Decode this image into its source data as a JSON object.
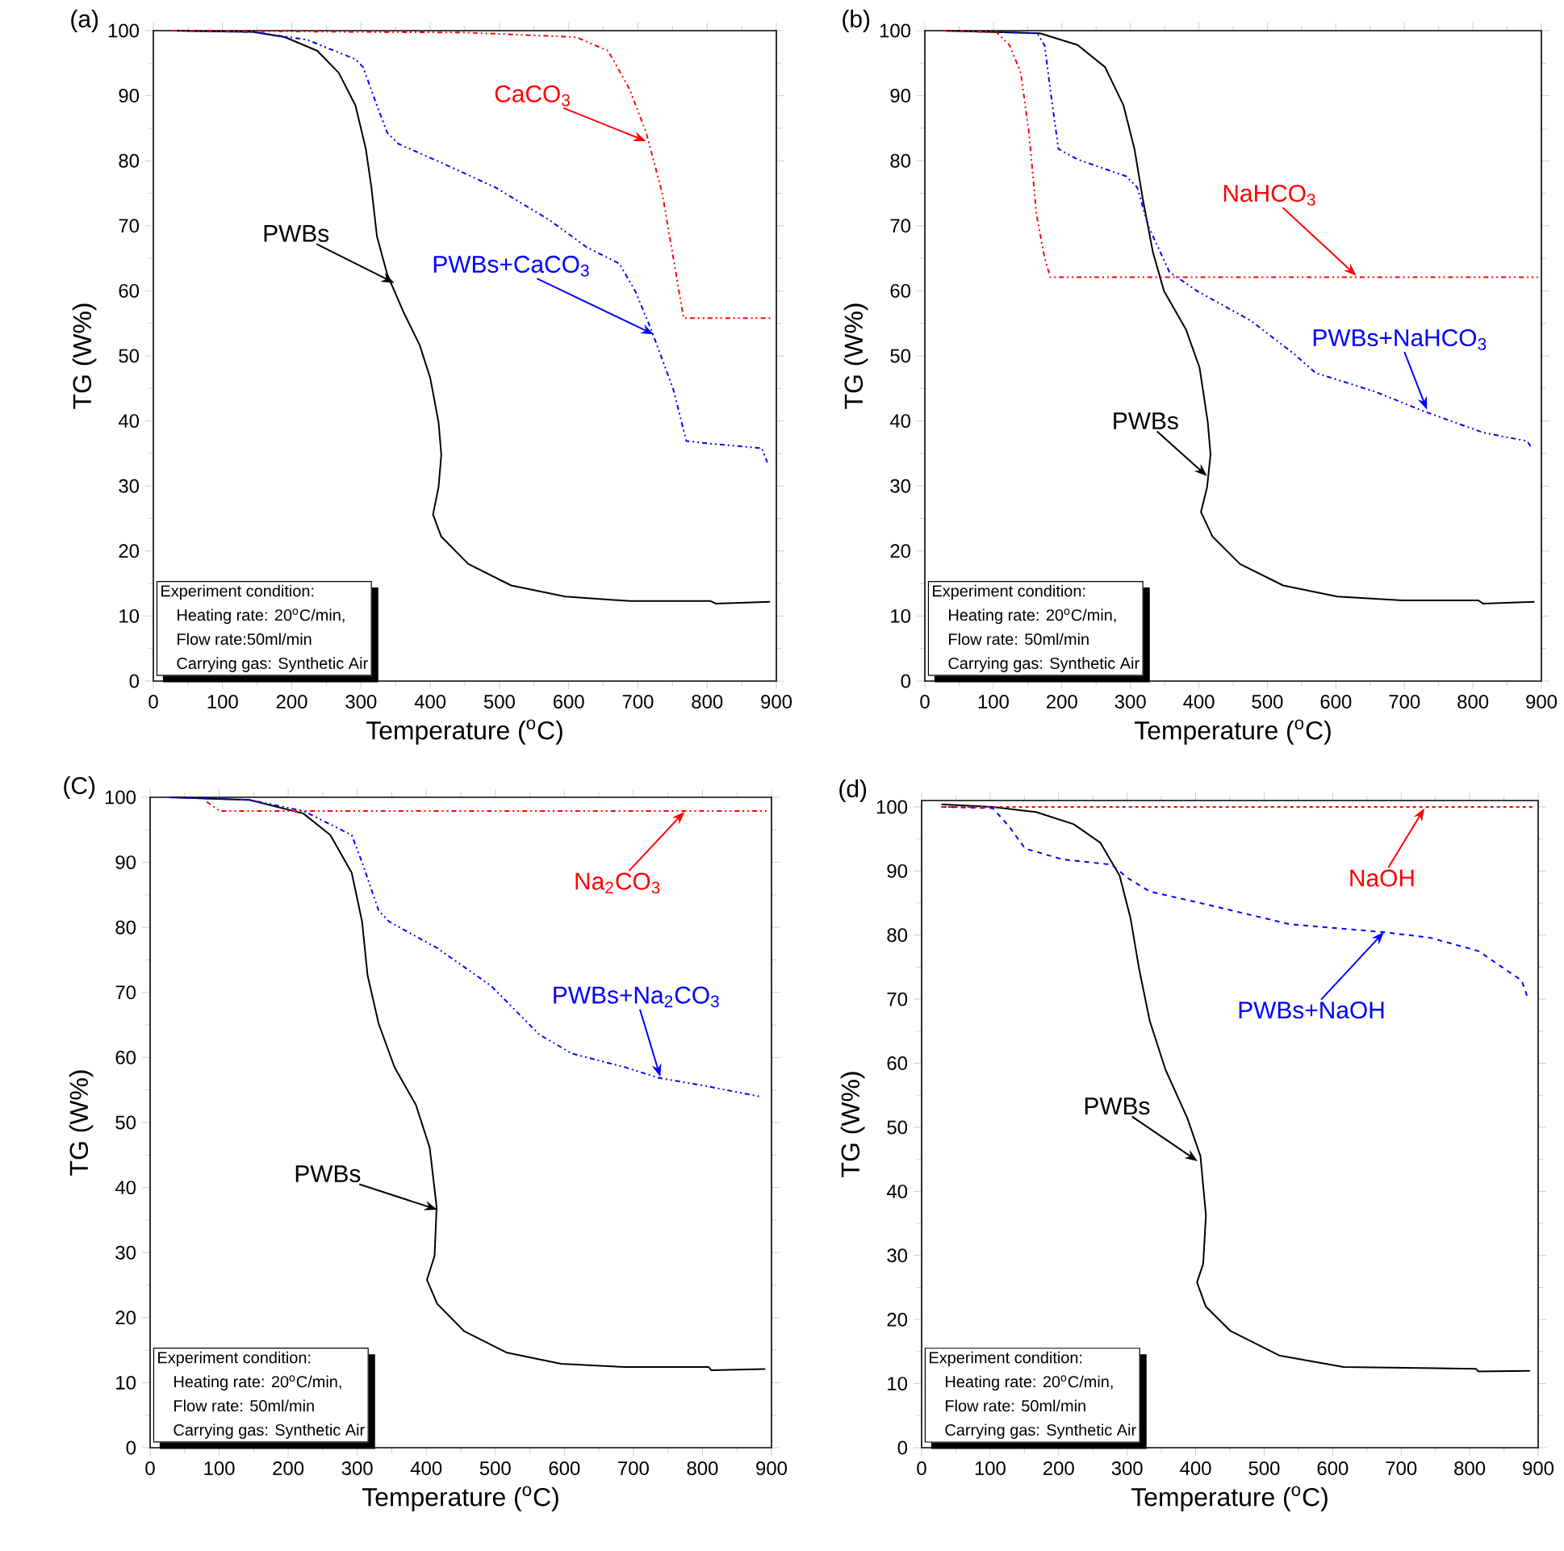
{
  "chart_data": [
    {
      "type": "line",
      "title": "(a)",
      "xlabel": "Temperature ($^{o}$C)",
      "ylabel": "TG (W%)",
      "xlim": [
        0,
        900
      ],
      "ylim": [
        0,
        100
      ],
      "xticks": [
        0,
        100,
        200,
        300,
        400,
        500,
        600,
        700,
        800,
        900
      ],
      "yticks": [
        0,
        10,
        20,
        30,
        40,
        50,
        60,
        70,
        80,
        90,
        100
      ],
      "series": [
        {
          "color": "#ff0000",
          "line_style": "dashdotdotted",
          "x": [
            27,
            455,
            611,
            657,
            688,
            712,
            735,
            754,
            766,
            895
          ],
          "values": [
            100,
            99.7,
            99,
            96.9,
            91,
            84.3,
            75.1,
            63.3,
            55.8,
            55.8
          ]
        },
        {
          "color": "#0000ff",
          "line_style": "dashdotdotted",
          "x": [
            27,
            144,
            222,
            292,
            303,
            323,
            338,
            354,
            416,
            494,
            572,
            626,
            673,
            696,
            719,
            751,
            770,
            805,
            879,
            887
          ],
          "values": [
            100,
            99.8,
            98.6,
            95.6,
            94.4,
            88.5,
            84.3,
            82.6,
            79.7,
            75.9,
            70.9,
            66.7,
            64.2,
            60,
            54.1,
            44.9,
            36.9,
            36.5,
            35.8,
            33.6
          ]
        },
        {
          "color": "#000000",
          "line_style": "solid",
          "x": [
            27,
            144,
            190,
            237,
            268,
            292,
            307,
            315,
            323,
            338,
            362,
            385,
            400,
            412,
            416,
            412,
            404,
            416,
            455,
            517,
            595,
            688,
            805,
            813,
            891
          ],
          "values": [
            100,
            99.8,
            99,
            96.9,
            93.5,
            88.5,
            81.8,
            75.9,
            68.4,
            62.5,
            56.6,
            51.6,
            46.6,
            39.8,
            34.8,
            29.8,
            25.6,
            22.2,
            18,
            14.7,
            13,
            12.3,
            12.3,
            11.9,
            12.2
          ]
        }
      ],
      "annotations": [
        {
          "text": "CaCO$_{3}$",
          "x": 712,
          "y": 83
        },
        {
          "text": "PWBs+CaCO$_{3}$",
          "x": 723,
          "y": 53.3
        },
        {
          "text": "PWBs",
          "x": 348,
          "y": 61.2
        },
        "Experiment condition:",
        "Heating rate: 20$^{o}$C/min,",
        "Flow rate:50ml/min",
        "Carrying gas: Synthetic Air"
      ]
    },
    {
      "type": "line",
      "title": "(b)",
      "xlabel": "Temperature ($^{o}$C)",
      "ylabel": "TG (W%)",
      "xlim": [
        0,
        900
      ],
      "ylim": [
        0,
        100
      ],
      "xticks": [
        0,
        100,
        200,
        300,
        400,
        500,
        600,
        700,
        800,
        900
      ],
      "yticks": [
        0,
        10,
        20,
        30,
        40,
        50,
        60,
        70,
        80,
        90,
        100
      ],
      "series": [
        {
          "color": "#ff0000",
          "line_style": "dashdotdotted",
          "x": [
            25,
            104,
            124,
            140,
            152,
            163,
            175,
            183,
            895
          ],
          "values": [
            100,
            99.8,
            97.7,
            93.5,
            84.3,
            71.7,
            65,
            62.1,
            62.1
          ]
        },
        {
          "color": "#0000ff",
          "line_style": "dashdotdotted",
          "x": [
            25,
            164,
            175,
            183,
            195,
            223,
            294,
            310,
            326,
            357,
            397,
            476,
            539,
            570,
            657,
            728,
            815,
            879,
            887
          ],
          "values": [
            100,
            99.6,
            97.7,
            91,
            81.8,
            80.2,
            77.6,
            75.9,
            70,
            62.9,
            60,
            55.4,
            50.3,
            47.4,
            44.5,
            41.5,
            38.2,
            36.9,
            35.7
          ]
        },
        {
          "color": "#000000",
          "line_style": "solid",
          "x": [
            25,
            168,
            223,
            263,
            290,
            306,
            318,
            333,
            349,
            381,
            401,
            413,
            417,
            412,
            403,
            420,
            460,
            523,
            602,
            697,
            808,
            815,
            890
          ],
          "values": [
            100,
            99.6,
            97.8,
            94.4,
            88.5,
            81.8,
            74.2,
            65.9,
            60,
            54.1,
            48.2,
            39.8,
            34.8,
            29.8,
            26,
            22.2,
            18,
            14.7,
            13,
            12.4,
            12.4,
            11.9,
            12.2
          ]
        }
      ],
      "annotations": [
        {
          "text": "NaHCO$_{3}$",
          "x": 630,
          "y": 62.3
        },
        {
          "text": "PWBs+NaHCO$_{3}$",
          "x": 733,
          "y": 41.7
        },
        {
          "text": "PWBs",
          "x": 412,
          "y": 31.5
        },
        "Experiment condition:",
        "Heating rate: 20$^{o}$C/min,",
        "Flow rate: 50ml/min",
        "Carrying gas: Synthetic Air"
      ]
    },
    {
      "type": "line",
      "title": "(C)",
      "xlabel": "Temperature ($^{o}$C)",
      "ylabel": "TG (W%)",
      "xlim": [
        0,
        900
      ],
      "ylim": [
        0,
        100
      ],
      "xticks": [
        0,
        100,
        200,
        300,
        400,
        500,
        600,
        700,
        800,
        900
      ],
      "yticks": [
        0,
        10,
        20,
        30,
        40,
        50,
        60,
        70,
        80,
        90,
        100
      ],
      "series": [
        {
          "color": "#ff0000",
          "line_style": "dashdotdotted",
          "x": [
            82,
            101,
            222,
            895
          ],
          "values": [
            99.3,
            97.9,
            97.9,
            97.9
          ]
        },
        {
          "color": "#0000ff",
          "line_style": "dashdotdotted",
          "x": [
            27,
            144,
            222,
            292,
            307,
            331,
            346,
            416,
            494,
            564,
            611,
            688,
            735,
            805,
            883
          ],
          "values": [
            100,
            99.6,
            97.9,
            94.2,
            90,
            82.6,
            80.9,
            76.8,
            71,
            63.5,
            60.6,
            58.5,
            56.9,
            55.6,
            54
          ]
        },
        {
          "color": "#000000",
          "line_style": "solid",
          "x": [
            27,
            144,
            222,
            261,
            292,
            307,
            315,
            331,
            354,
            385,
            405,
            415,
            412,
            401,
            416,
            455,
            517,
            595,
            688,
            809,
            813,
            891
          ],
          "values": [
            100,
            99.6,
            97.5,
            94.2,
            88.4,
            80.9,
            72.6,
            65.2,
            58.5,
            52.7,
            46.1,
            37,
            29.5,
            25.8,
            22.1,
            17.9,
            14.6,
            12.9,
            12.4,
            12.4,
            11.9,
            12.1
          ]
        }
      ],
      "annotations": [
        {
          "text": "Na$_{2}$CO$_{3}$",
          "x": 774,
          "y": 97.8
        },
        {
          "text": "PWBs+Na$_{2}$CO$_{3}$",
          "x": 739,
          "y": 57
        },
        {
          "text": "PWBs",
          "x": 416,
          "y": 36.6
        },
        "Experiment condition:",
        "Heating rate: 20$^{o}$C/min,",
        "Flow rate: 50ml/min",
        "Carrying gas: Synthetic Air"
      ]
    },
    {
      "type": "line",
      "title": "(d)",
      "xlabel": "Temperature ($^{o}$C)",
      "ylabel": "TG (W%)",
      "xlim": [
        0,
        900
      ],
      "ylim": [
        0,
        101
      ],
      "xticks": [
        0,
        100,
        200,
        300,
        400,
        500,
        600,
        700,
        800,
        900
      ],
      "yticks": [
        0,
        10,
        20,
        30,
        40,
        50,
        60,
        70,
        80,
        90,
        100
      ],
      "series": [
        {
          "color": "#ff0000",
          "line_style": "dotted",
          "x": [
            29,
            895
          ],
          "values": [
            100,
            100
          ]
        },
        {
          "color": "#0000ff",
          "line_style": "dashed",
          "x": [
            29,
            104,
            128,
            151,
            206,
            277,
            301,
            333,
            419,
            537,
            671,
            742,
            813,
            876,
            884
          ],
          "values": [
            100,
            99.8,
            96.9,
            93.5,
            91.8,
            91,
            88.9,
            86.8,
            84.7,
            81.7,
            80.5,
            79.6,
            77.5,
            72.9,
            70.4
          ]
        },
        {
          "color": "#000000",
          "line_style": "solid",
          "x": [
            29,
            104,
            167,
            222,
            261,
            289,
            305,
            317,
            333,
            356,
            388,
            407,
            415,
            411,
            402,
            415,
            451,
            522,
            616,
            809,
            813,
            888
          ],
          "values": [
            100.4,
            100,
            99.2,
            97.3,
            94.4,
            89.3,
            82.6,
            75,
            66.6,
            59,
            51.4,
            45.5,
            36.3,
            28.7,
            25.8,
            22,
            18.2,
            14.4,
            12.6,
            12.3,
            11.9,
            12
          ]
        }
      ],
      "annotations": [
        {
          "text": "NaOH",
          "x": 734,
          "y": 99.8
        },
        {
          "text": "PWBs+NaOH",
          "x": 675,
          "y": 80.5
        },
        {
          "text": "PWBs",
          "x": 403,
          "y": 44.7
        },
        "Experiment condition:",
        "Heating rate: 20$^{o}$C/min,",
        "Flow rate: 50ml/min",
        "Carrying gas: Synthetic Air"
      ]
    }
  ]
}
